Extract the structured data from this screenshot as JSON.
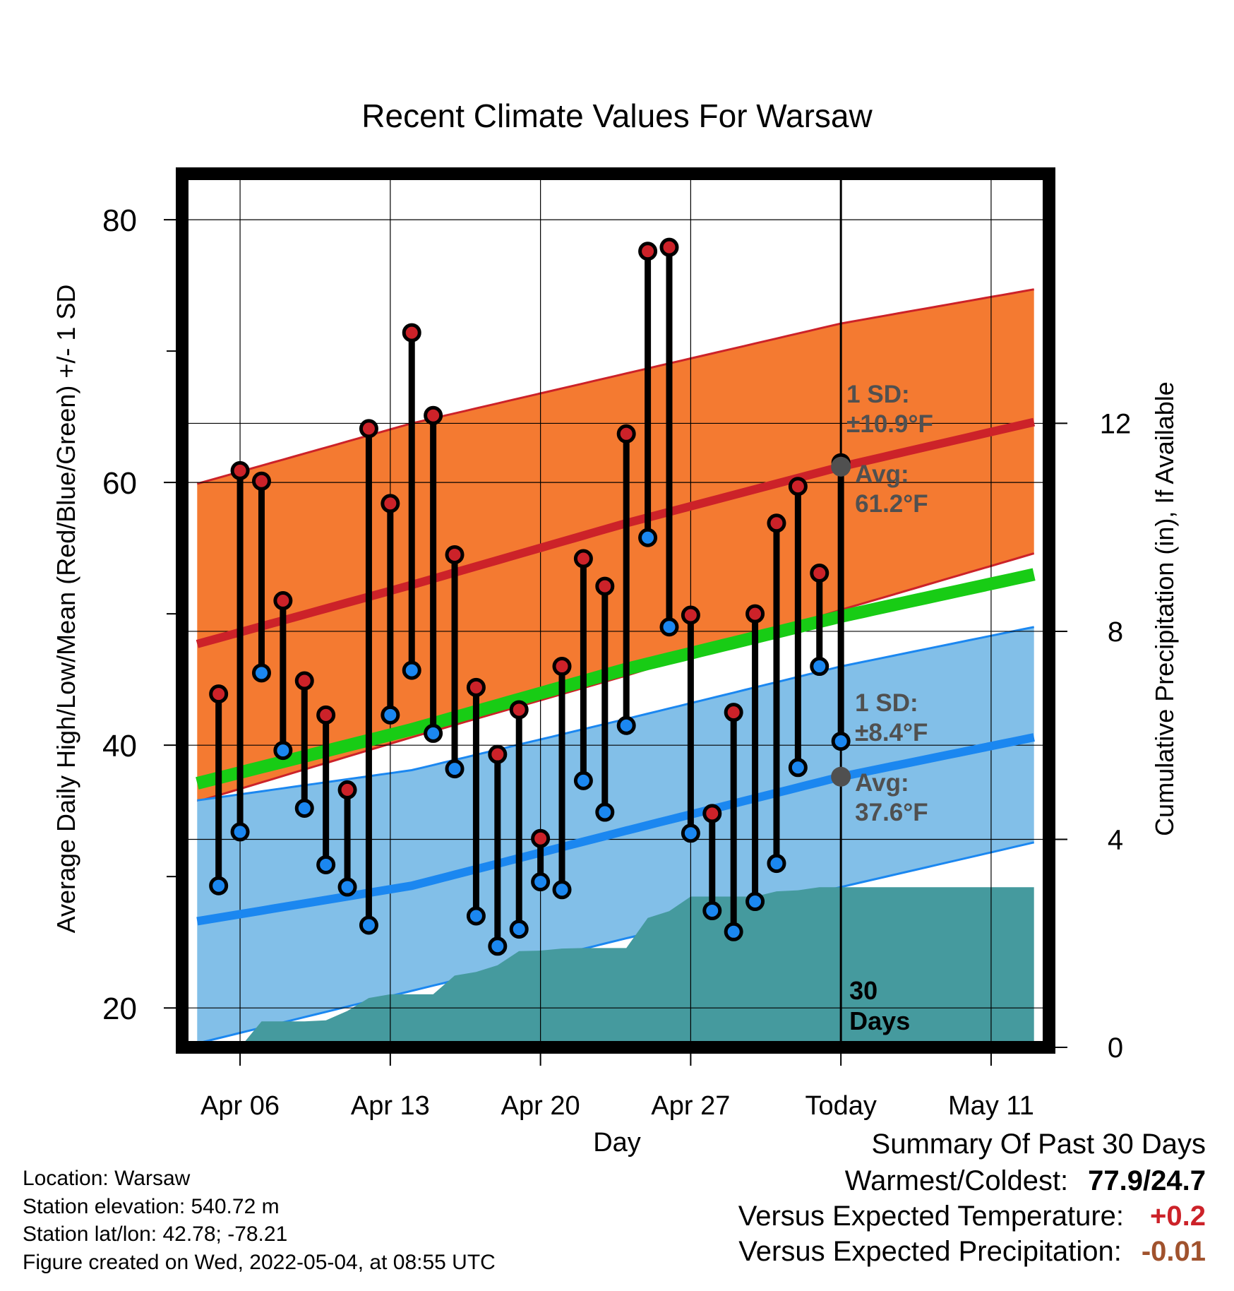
{
  "chart_data": {
    "type": "line",
    "title": "Recent Climate Values For Warsaw",
    "xlabel": "Day",
    "ylabel_left": "Average Daily High/Low/Mean (Red/Blue/Green) +/- 1 SD",
    "ylabel_right": "Cumulative Precipitation (in), If Available",
    "y_ticks": [
      "20",
      "40",
      "60",
      "80"
    ],
    "y_right_ticks": [
      "0",
      "4",
      "8",
      "12"
    ],
    "x_ticks": [
      {
        "label": "Apr 06",
        "day": 2
      },
      {
        "label": "Apr 13",
        "day": 9
      },
      {
        "label": "Apr 20",
        "day": 16
      },
      {
        "label": "Apr 27",
        "day": 23
      },
      {
        "label": "Today",
        "day": 30
      },
      {
        "label": "May 11",
        "day": 37
      }
    ],
    "xlim": [
      -0.7,
      39.7
    ],
    "ylim": [
      17,
      83.5
    ],
    "y_right_lim": [
      0,
      16.8
    ],
    "today_day": 30,
    "days_label": [
      "30",
      "Days"
    ],
    "observed": {
      "days": [
        1,
        2,
        3,
        4,
        5,
        6,
        7,
        8,
        9,
        10,
        11,
        12,
        13,
        14,
        15,
        16,
        17,
        18,
        19,
        20,
        21,
        22,
        23,
        24,
        25,
        26,
        27,
        28,
        29,
        30
      ],
      "high": [
        43.9,
        60.9,
        60.1,
        51.0,
        44.9,
        42.3,
        36.6,
        64.1,
        58.4,
        71.4,
        65.1,
        54.5,
        44.4,
        39.3,
        42.7,
        32.9,
        46.0,
        54.2,
        52.1,
        63.7,
        77.6,
        77.9,
        49.9,
        34.8,
        42.5,
        50.0,
        56.9,
        59.7,
        53.1,
        61.5
      ],
      "low": [
        29.3,
        33.4,
        45.5,
        39.6,
        35.2,
        30.9,
        29.2,
        26.3,
        42.3,
        45.7,
        40.9,
        38.2,
        27.0,
        24.7,
        26.0,
        29.6,
        29.0,
        37.3,
        34.9,
        41.5,
        55.8,
        49.0,
        33.3,
        27.4,
        25.8,
        28.1,
        31.0,
        38.3,
        46.0,
        40.3
      ]
    },
    "normals": {
      "days": [
        0,
        10,
        20,
        30,
        39
      ],
      "high_mean": [
        47.7,
        52.2,
        56.9,
        61.2,
        64.6
      ],
      "high_upper": [
        59.9,
        64.5,
        68.3,
        72.1,
        74.7
      ],
      "high_lower": [
        35.7,
        40.6,
        45.3,
        50.3,
        54.6
      ],
      "low_mean": [
        26.6,
        29.3,
        33.5,
        37.6,
        40.6
      ],
      "low_upper": [
        35.8,
        38.1,
        42.0,
        46.0,
        49.0
      ],
      "low_lower": [
        17.3,
        21.3,
        25.3,
        29.2,
        32.6
      ],
      "mean": [
        37.1,
        41.2,
        45.8,
        49.8,
        53.0
      ]
    },
    "precip_cumulative": {
      "days": [
        0,
        1,
        2,
        3,
        4,
        5,
        6,
        7,
        8,
        9,
        10,
        11,
        12,
        13,
        14,
        15,
        16,
        17,
        18,
        19,
        20,
        21,
        22,
        23,
        24,
        25,
        26,
        27,
        28,
        29,
        30,
        39
      ],
      "values": [
        0,
        0,
        0,
        0.5,
        0.5,
        0.5,
        0.52,
        0.7,
        0.95,
        1.02,
        1.02,
        1.02,
        1.38,
        1.45,
        1.58,
        1.85,
        1.86,
        1.9,
        1.91,
        1.91,
        1.91,
        2.49,
        2.62,
        2.9,
        2.9,
        2.9,
        2.9,
        3.0,
        3.02,
        3.08,
        3.08,
        3.08
      ]
    },
    "annotations": {
      "high_sd": [
        "1 SD:",
        "±10.9°F"
      ],
      "high_avg": [
        "Avg:",
        "61.2°F"
      ],
      "low_sd": [
        "1 SD:",
        "±8.4°F"
      ],
      "low_avg": [
        "Avg:",
        "37.6°F"
      ]
    },
    "colors": {
      "high_band": "#f47a31",
      "high_line": "#cc2229",
      "low_band": "#82bfe8",
      "low_line": "#1b87f0",
      "mean_line": "#18cc15",
      "precip": "#459a9e",
      "high_dot": "#cc2229",
      "low_dot": "#1b87f0",
      "today_marker": "#505050",
      "annotation_text": "#505050"
    }
  },
  "info": {
    "location": "Location: Warsaw",
    "elevation": "Station elevation: 540.72 m",
    "latlon": "Station lat/lon: 42.78; -78.21",
    "created": "Figure created on Wed, 2022-05-04, at 08:55 UTC"
  },
  "summary": {
    "title": "Summary Of Past 30 Days",
    "warmest_coldest_label": "Warmest/Coldest:",
    "warmest_coldest_value": "77.9/24.7",
    "temp_label": "Versus Expected Temperature:",
    "temp_value": "+0.2",
    "temp_color": "#cc2229",
    "precip_label": "Versus Expected Precipitation:",
    "precip_value": "-0.01",
    "precip_color": "#a0522d"
  }
}
